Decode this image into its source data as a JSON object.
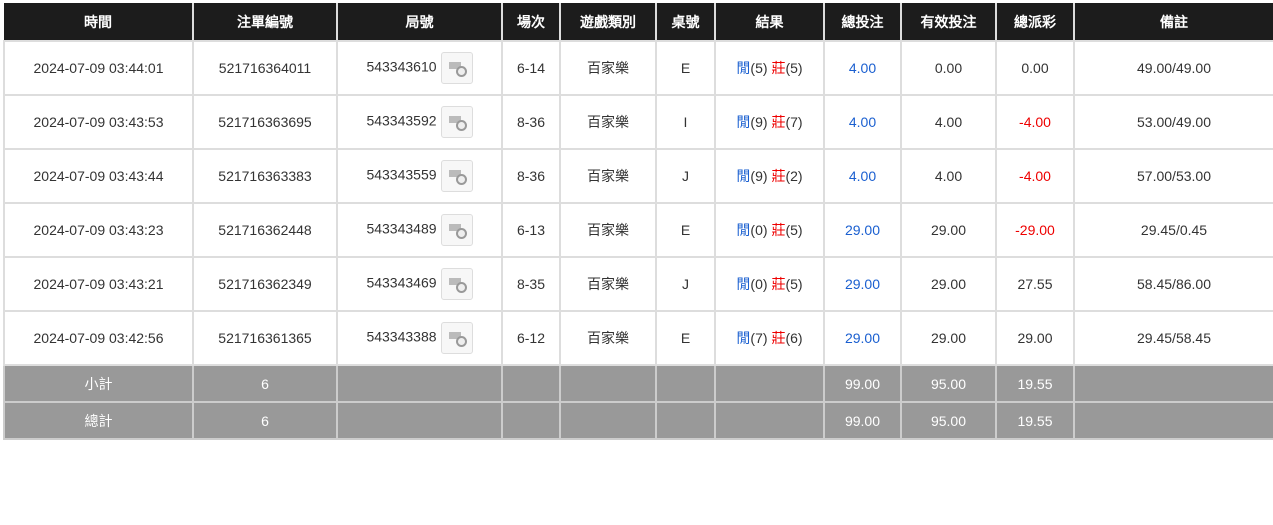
{
  "headers": [
    "時間",
    "注單編號",
    "局號",
    "場次",
    "遊戲類別",
    "桌號",
    "結果",
    "總投注",
    "有效投注",
    "總派彩",
    "備註"
  ],
  "rows": [
    {
      "time": "2024-07-09 03:44:01",
      "bet_id": "521716364011",
      "round": "543343610",
      "shoe": "6-14",
      "game": "百家樂",
      "table": "E",
      "player": "閒",
      "player_pts": "(5)",
      "banker": "莊",
      "banker_pts": "(5)",
      "total_bet": "4.00",
      "valid_bet": "0.00",
      "payout": "0.00",
      "payout_neg": false,
      "remark": "49.00/49.00"
    },
    {
      "time": "2024-07-09 03:43:53",
      "bet_id": "521716363695",
      "round": "543343592",
      "shoe": "8-36",
      "game": "百家樂",
      "table": "I",
      "player": "閒",
      "player_pts": "(9)",
      "banker": "莊",
      "banker_pts": "(7)",
      "total_bet": "4.00",
      "valid_bet": "4.00",
      "payout": "-4.00",
      "payout_neg": true,
      "remark": "53.00/49.00"
    },
    {
      "time": "2024-07-09 03:43:44",
      "bet_id": "521716363383",
      "round": "543343559",
      "shoe": "8-36",
      "game": "百家樂",
      "table": "J",
      "player": "閒",
      "player_pts": "(9)",
      "banker": "莊",
      "banker_pts": "(2)",
      "total_bet": "4.00",
      "valid_bet": "4.00",
      "payout": "-4.00",
      "payout_neg": true,
      "remark": "57.00/53.00"
    },
    {
      "time": "2024-07-09 03:43:23",
      "bet_id": "521716362448",
      "round": "543343489",
      "shoe": "6-13",
      "game": "百家樂",
      "table": "E",
      "player": "閒",
      "player_pts": "(0)",
      "banker": "莊",
      "banker_pts": "(5)",
      "total_bet": "29.00",
      "valid_bet": "29.00",
      "payout": "-29.00",
      "payout_neg": true,
      "remark": "29.45/0.45"
    },
    {
      "time": "2024-07-09 03:43:21",
      "bet_id": "521716362349",
      "round": "543343469",
      "shoe": "8-35",
      "game": "百家樂",
      "table": "J",
      "player": "閒",
      "player_pts": "(0)",
      "banker": "莊",
      "banker_pts": "(5)",
      "total_bet": "29.00",
      "valid_bet": "29.00",
      "payout": "27.55",
      "payout_neg": false,
      "remark": "58.45/86.00"
    },
    {
      "time": "2024-07-09 03:42:56",
      "bet_id": "521716361365",
      "round": "543343388",
      "shoe": "6-12",
      "game": "百家樂",
      "table": "E",
      "player": "閒",
      "player_pts": "(7)",
      "banker": "莊",
      "banker_pts": "(6)",
      "total_bet": "29.00",
      "valid_bet": "29.00",
      "payout": "29.00",
      "payout_neg": false,
      "remark": "29.45/58.45"
    }
  ],
  "summary": [
    {
      "label": "小計",
      "count": "6",
      "total_bet": "99.00",
      "valid_bet": "95.00",
      "payout": "19.55"
    },
    {
      "label": "總計",
      "count": "6",
      "total_bet": "99.00",
      "valid_bet": "95.00",
      "payout": "19.55"
    }
  ],
  "colors": {
    "player": "#1a5fd0",
    "banker": "#e00000",
    "header_bg": "#1c1c1c",
    "summary_bg": "#999999"
  }
}
